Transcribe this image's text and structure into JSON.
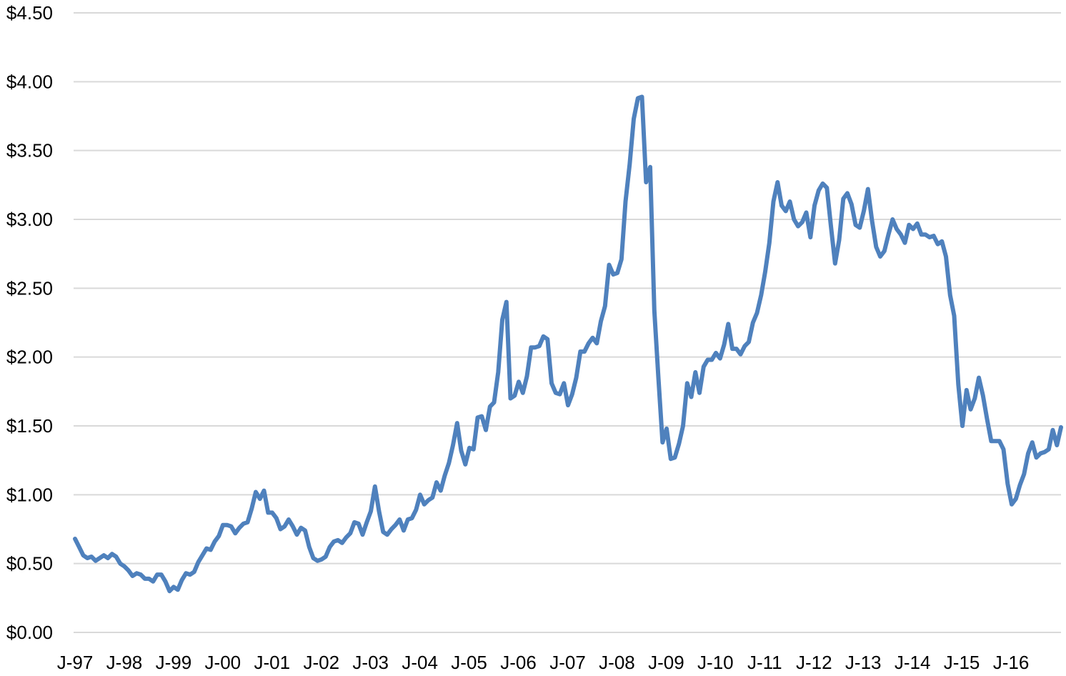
{
  "chart_data": {
    "type": "line",
    "title": "",
    "xlabel": "",
    "ylabel": "",
    "ylim": [
      0,
      4.5
    ],
    "grid": true,
    "legend": "none",
    "y_ticks": [
      "$0.00",
      "$0.50",
      "$1.00",
      "$1.50",
      "$2.00",
      "$2.50",
      "$3.00",
      "$3.50",
      "$4.00",
      "$4.50"
    ],
    "x_ticks": [
      "J-97",
      "J-98",
      "J-99",
      "J-00",
      "J-01",
      "J-02",
      "J-03",
      "J-04",
      "J-05",
      "J-06",
      "J-07",
      "J-08",
      "J-09",
      "J-10",
      "J-11",
      "J-12",
      "J-13",
      "J-14",
      "J-15",
      "J-16"
    ],
    "series": [
      {
        "color": "#4f81bd",
        "values": [
          0.68,
          0.62,
          0.56,
          0.54,
          0.55,
          0.52,
          0.54,
          0.56,
          0.54,
          0.57,
          0.55,
          0.5,
          0.48,
          0.45,
          0.41,
          0.43,
          0.42,
          0.39,
          0.39,
          0.37,
          0.42,
          0.42,
          0.37,
          0.3,
          0.33,
          0.31,
          0.38,
          0.43,
          0.42,
          0.44,
          0.51,
          0.56,
          0.61,
          0.6,
          0.66,
          0.7,
          0.78,
          0.78,
          0.77,
          0.72,
          0.76,
          0.79,
          0.8,
          0.9,
          1.02,
          0.97,
          1.03,
          0.87,
          0.87,
          0.83,
          0.75,
          0.77,
          0.82,
          0.77,
          0.71,
          0.76,
          0.74,
          0.62,
          0.54,
          0.52,
          0.53,
          0.55,
          0.62,
          0.66,
          0.67,
          0.65,
          0.69,
          0.72,
          0.8,
          0.79,
          0.71,
          0.8,
          0.88,
          1.06,
          0.88,
          0.73,
          0.71,
          0.75,
          0.78,
          0.82,
          0.74,
          0.82,
          0.83,
          0.89,
          1.0,
          0.93,
          0.96,
          0.98,
          1.09,
          1.03,
          1.14,
          1.23,
          1.36,
          1.52,
          1.32,
          1.22,
          1.34,
          1.33,
          1.56,
          1.57,
          1.47,
          1.64,
          1.67,
          1.89,
          2.27,
          2.4,
          1.7,
          1.72,
          1.82,
          1.74,
          1.86,
          2.07,
          2.07,
          2.08,
          2.15,
          2.13,
          1.81,
          1.74,
          1.73,
          1.81,
          1.65,
          1.73,
          1.85,
          2.04,
          2.04,
          2.1,
          2.14,
          2.1,
          2.26,
          2.37,
          2.67,
          2.6,
          2.61,
          2.71,
          3.13,
          3.4,
          3.73,
          3.88,
          3.89,
          3.27,
          3.38,
          2.34,
          1.85,
          1.38,
          1.48,
          1.26,
          1.27,
          1.37,
          1.5,
          1.81,
          1.71,
          1.89,
          1.74,
          1.93,
          1.98,
          1.98,
          2.03,
          1.99,
          2.09,
          2.24,
          2.06,
          2.06,
          2.02,
          2.08,
          2.11,
          2.25,
          2.32,
          2.45,
          2.62,
          2.83,
          3.13,
          3.27,
          3.1,
          3.06,
          3.13,
          3.0,
          2.95,
          2.98,
          3.05,
          2.87,
          3.1,
          3.21,
          3.26,
          3.23,
          2.95,
          2.68,
          2.85,
          3.15,
          3.19,
          3.11,
          2.96,
          2.94,
          3.06,
          3.22,
          2.99,
          2.8,
          2.73,
          2.77,
          2.89,
          3.0,
          2.93,
          2.89,
          2.83,
          2.96,
          2.93,
          2.97,
          2.89,
          2.89,
          2.87,
          2.88,
          2.82,
          2.84,
          2.73,
          2.45,
          2.3,
          1.8,
          1.5,
          1.76,
          1.62,
          1.7,
          1.85,
          1.72,
          1.55,
          1.39,
          1.39,
          1.39,
          1.33,
          1.08,
          0.93,
          0.97,
          1.07,
          1.15,
          1.3,
          1.38,
          1.27,
          1.3,
          1.31,
          1.33,
          1.47,
          1.36,
          1.49
        ]
      }
    ]
  }
}
